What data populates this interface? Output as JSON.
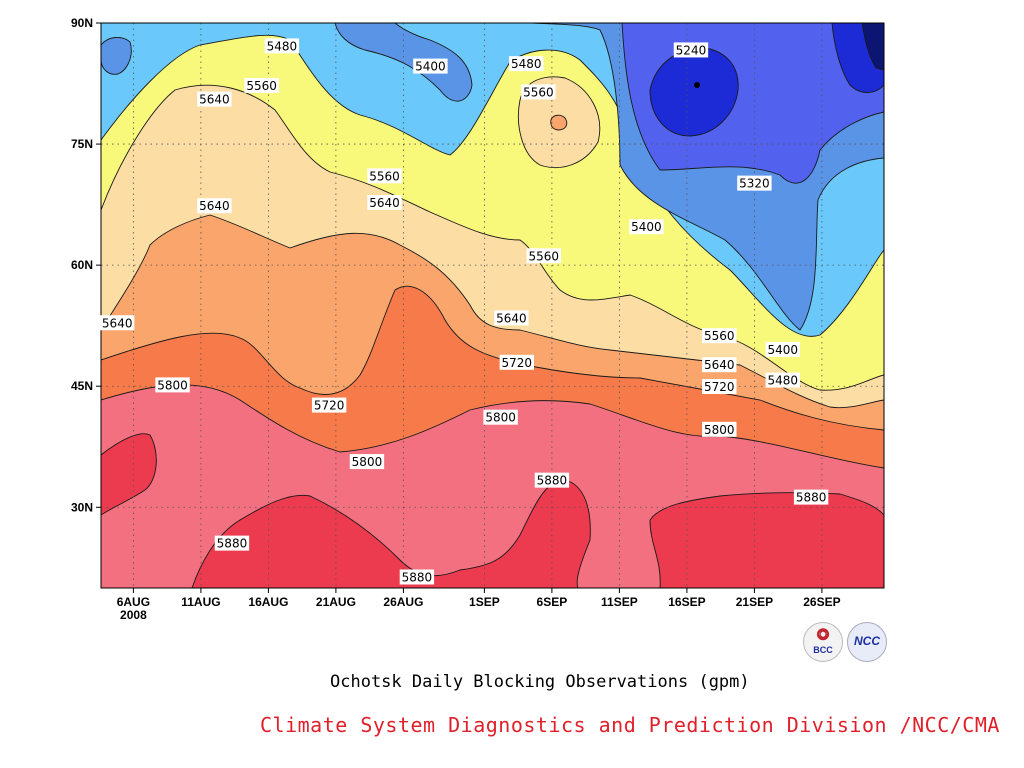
{
  "chart_data": {
    "type": "contour",
    "title": "Ochotsk Daily Blocking Observations (gpm)",
    "x_ticks": [
      {
        "label": "6AUG",
        "sub": "2008",
        "day": 6
      },
      {
        "label": "11AUG",
        "day": 11
      },
      {
        "label": "16AUG",
        "day": 16
      },
      {
        "label": "21AUG",
        "day": 21
      },
      {
        "label": "26AUG",
        "day": 26
      },
      {
        "label": "1SEP",
        "day": 32
      },
      {
        "label": "6SEP",
        "day": 37
      },
      {
        "label": "11SEP",
        "day": 42
      },
      {
        "label": "16SEP",
        "day": 47
      },
      {
        "label": "21SEP",
        "day": 52
      },
      {
        "label": "26SEP",
        "day": 57
      }
    ],
    "y_ticks": [
      {
        "label": "30N",
        "lat": 30
      },
      {
        "label": "45N",
        "lat": 45
      },
      {
        "label": "60N",
        "lat": 60
      },
      {
        "label": "75N",
        "lat": 75
      },
      {
        "label": "90N",
        "lat": 90
      }
    ],
    "xlim_days": [
      3.6,
      61.6
    ],
    "ylim_lat": [
      20,
      90
    ],
    "contour_levels": [
      5240,
      5320,
      5400,
      5480,
      5560,
      5640,
      5720,
      5800,
      5880
    ],
    "fill_colors": {
      "5160": "#0c1672",
      "5240": "#1c2bd6",
      "5320": "#5262ee",
      "5400": "#5a94e6",
      "5480": "#6ac8fa",
      "5560": "#f8f87a",
      "5640": "#fcdda4",
      "5720": "#f9a56c",
      "5800": "#f67a4a",
      "5880": "#f27080",
      "5960": "#ec3a4e"
    },
    "contour_labels": [
      {
        "text": "5480",
        "day": 17.0,
        "lat": 87.1
      },
      {
        "text": "5400",
        "day": 28.0,
        "lat": 84.6
      },
      {
        "text": "5480",
        "day": 35.1,
        "lat": 84.9
      },
      {
        "text": "5240",
        "day": 47.3,
        "lat": 86.6
      },
      {
        "text": "5560",
        "day": 15.5,
        "lat": 82.2
      },
      {
        "text": "5560",
        "day": 36.0,
        "lat": 81.4
      },
      {
        "text": "5640",
        "day": 12.0,
        "lat": 80.5
      },
      {
        "text": "5560",
        "day": 24.6,
        "lat": 71.0
      },
      {
        "text": "5320",
        "day": 52.0,
        "lat": 70.1
      },
      {
        "text": "5640",
        "day": 12.0,
        "lat": 67.3
      },
      {
        "text": "5640",
        "day": 24.6,
        "lat": 67.7
      },
      {
        "text": "5400",
        "day": 44.0,
        "lat": 64.7
      },
      {
        "text": "5560",
        "day": 36.4,
        "lat": 61.1
      },
      {
        "text": "5640",
        "day": 4.8,
        "lat": 52.8
      },
      {
        "text": "5640",
        "day": 34.0,
        "lat": 53.4
      },
      {
        "text": "5560",
        "day": 49.4,
        "lat": 51.2
      },
      {
        "text": "5400",
        "day": 54.1,
        "lat": 49.5
      },
      {
        "text": "5720",
        "day": 34.4,
        "lat": 47.9
      },
      {
        "text": "5640",
        "day": 49.4,
        "lat": 47.6
      },
      {
        "text": "5480",
        "day": 54.1,
        "lat": 45.7
      },
      {
        "text": "5800",
        "day": 8.9,
        "lat": 45.1
      },
      {
        "text": "5720",
        "day": 49.4,
        "lat": 44.9
      },
      {
        "text": "5720",
        "day": 20.5,
        "lat": 42.6
      },
      {
        "text": "5800",
        "day": 33.2,
        "lat": 41.1
      },
      {
        "text": "5800",
        "day": 49.4,
        "lat": 39.6
      },
      {
        "text": "5800",
        "day": 23.3,
        "lat": 35.6
      },
      {
        "text": "5880",
        "day": 37.0,
        "lat": 33.3
      },
      {
        "text": "5880",
        "day": 56.2,
        "lat": 31.2
      },
      {
        "text": "5880",
        "day": 13.3,
        "lat": 25.5
      },
      {
        "text": "5880",
        "day": 27.0,
        "lat": 21.3
      }
    ]
  },
  "footer": {
    "chart_title": "Ochotsk Daily Blocking Observations (gpm)",
    "credit": "Climate System Diagnostics and Prediction Division /NCC/CMA",
    "logo_left_text": "BCC",
    "logo_right_text": "NCC"
  }
}
